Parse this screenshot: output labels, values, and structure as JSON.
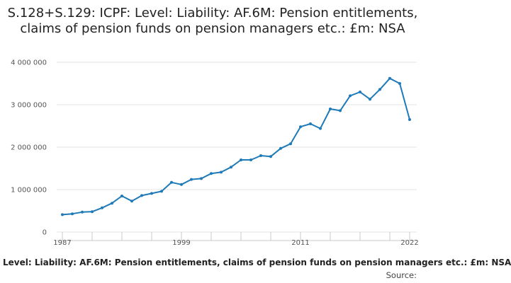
{
  "title": "S.128+S.129: ICPF: Level: Liability: AF.6M: Pension entitlements, claims of pension funds on pension managers etc.: £m: NSA",
  "legend_label": "Level: Liability: AF.6M: Pension entitlements, claims of pension funds on pension managers etc.: £m: NSA",
  "source_label": "Source:",
  "chart_data": {
    "type": "line",
    "title": "S.128+S.129: ICPF: Level: Liability: AF.6M: Pension entitlements, claims of pension funds on pension managers etc.: £m: NSA",
    "xlabel": "",
    "ylabel": "",
    "x": [
      1987,
      1988,
      1989,
      1990,
      1991,
      1992,
      1993,
      1994,
      1995,
      1996,
      1997,
      1998,
      1999,
      2000,
      2001,
      2002,
      2003,
      2004,
      2005,
      2006,
      2007,
      2008,
      2009,
      2010,
      2011,
      2012,
      2013,
      2014,
      2015,
      2016,
      2017,
      2018,
      2019,
      2020,
      2021,
      2022
    ],
    "series": [
      {
        "name": "Level: Liability: AF.6M: Pension entitlements, claims of pension funds on pension managers etc.: £m: NSA",
        "color": "#1f7ab8",
        "values": [
          410000,
          430000,
          470000,
          480000,
          570000,
          680000,
          850000,
          730000,
          860000,
          910000,
          960000,
          1170000,
          1120000,
          1240000,
          1260000,
          1380000,
          1410000,
          1530000,
          1700000,
          1700000,
          1800000,
          1780000,
          1970000,
          2080000,
          2480000,
          2550000,
          2440000,
          2900000,
          2860000,
          3210000,
          3300000,
          3130000,
          3360000,
          3620000,
          3500000,
          2650000
        ]
      }
    ],
    "x_tick_labels": [
      "1987",
      "1999",
      "2011",
      "2022"
    ],
    "x_tick_values": [
      1987,
      1999,
      2011,
      2022
    ],
    "y_tick_labels": [
      "0",
      "1 000 000",
      "2 000 000",
      "3 000 000",
      "4 000 000"
    ],
    "y_tick_values": [
      0,
      1000000,
      2000000,
      3000000,
      4000000
    ],
    "xlim": [
      1987,
      2022
    ],
    "ylim": [
      0,
      4000000
    ],
    "grid": "horizontal",
    "legend_position": "bottom"
  }
}
